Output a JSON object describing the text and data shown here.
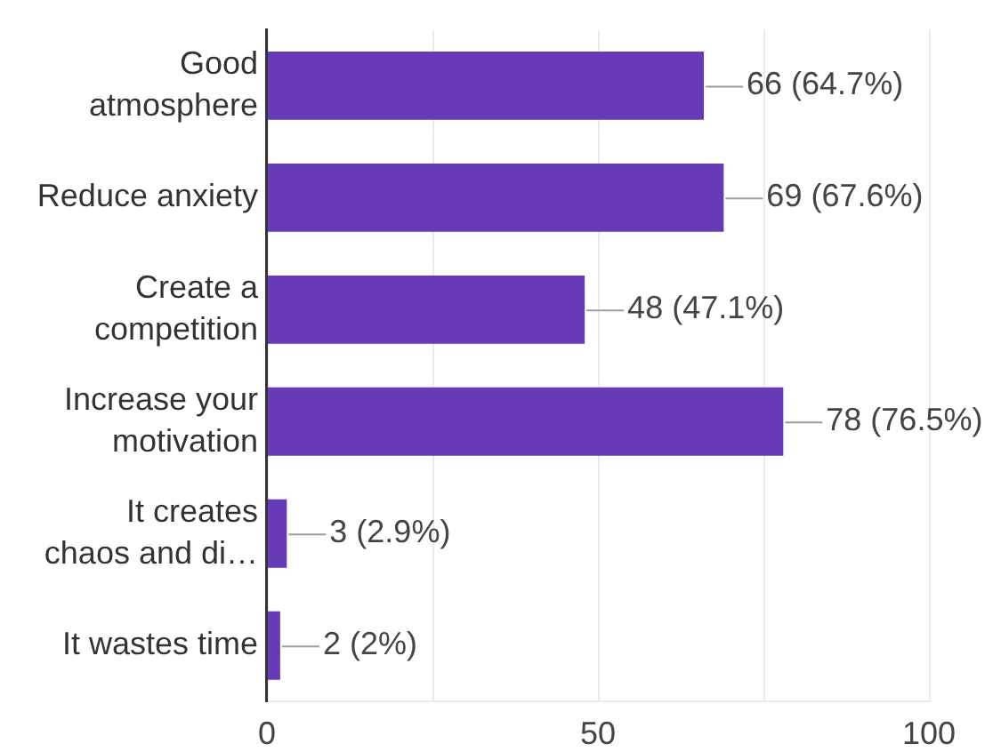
{
  "chart_data": {
    "type": "bar",
    "orientation": "horizontal",
    "categories": [
      "Good atmosphere",
      "Reduce anxiety",
      "Create a competition",
      "Increase your motivation",
      "It creates chaos and di…",
      "It wastes time"
    ],
    "values": [
      66,
      69,
      48,
      78,
      3,
      2
    ],
    "color": "#673ab7",
    "value_labels": [
      "66 (64.7%)",
      "69 (67.6%)",
      "48 (47.1%)",
      "78 (76.5%)",
      "3 (2.9%)",
      "2 (2%)"
    ],
    "xlim": [
      0,
      100
    ],
    "xticks": [
      0,
      {
        "value": 25,
        "label": null
      },
      50,
      {
        "value": 75,
        "label": null
      },
      100
    ],
    "grid": "x"
  }
}
